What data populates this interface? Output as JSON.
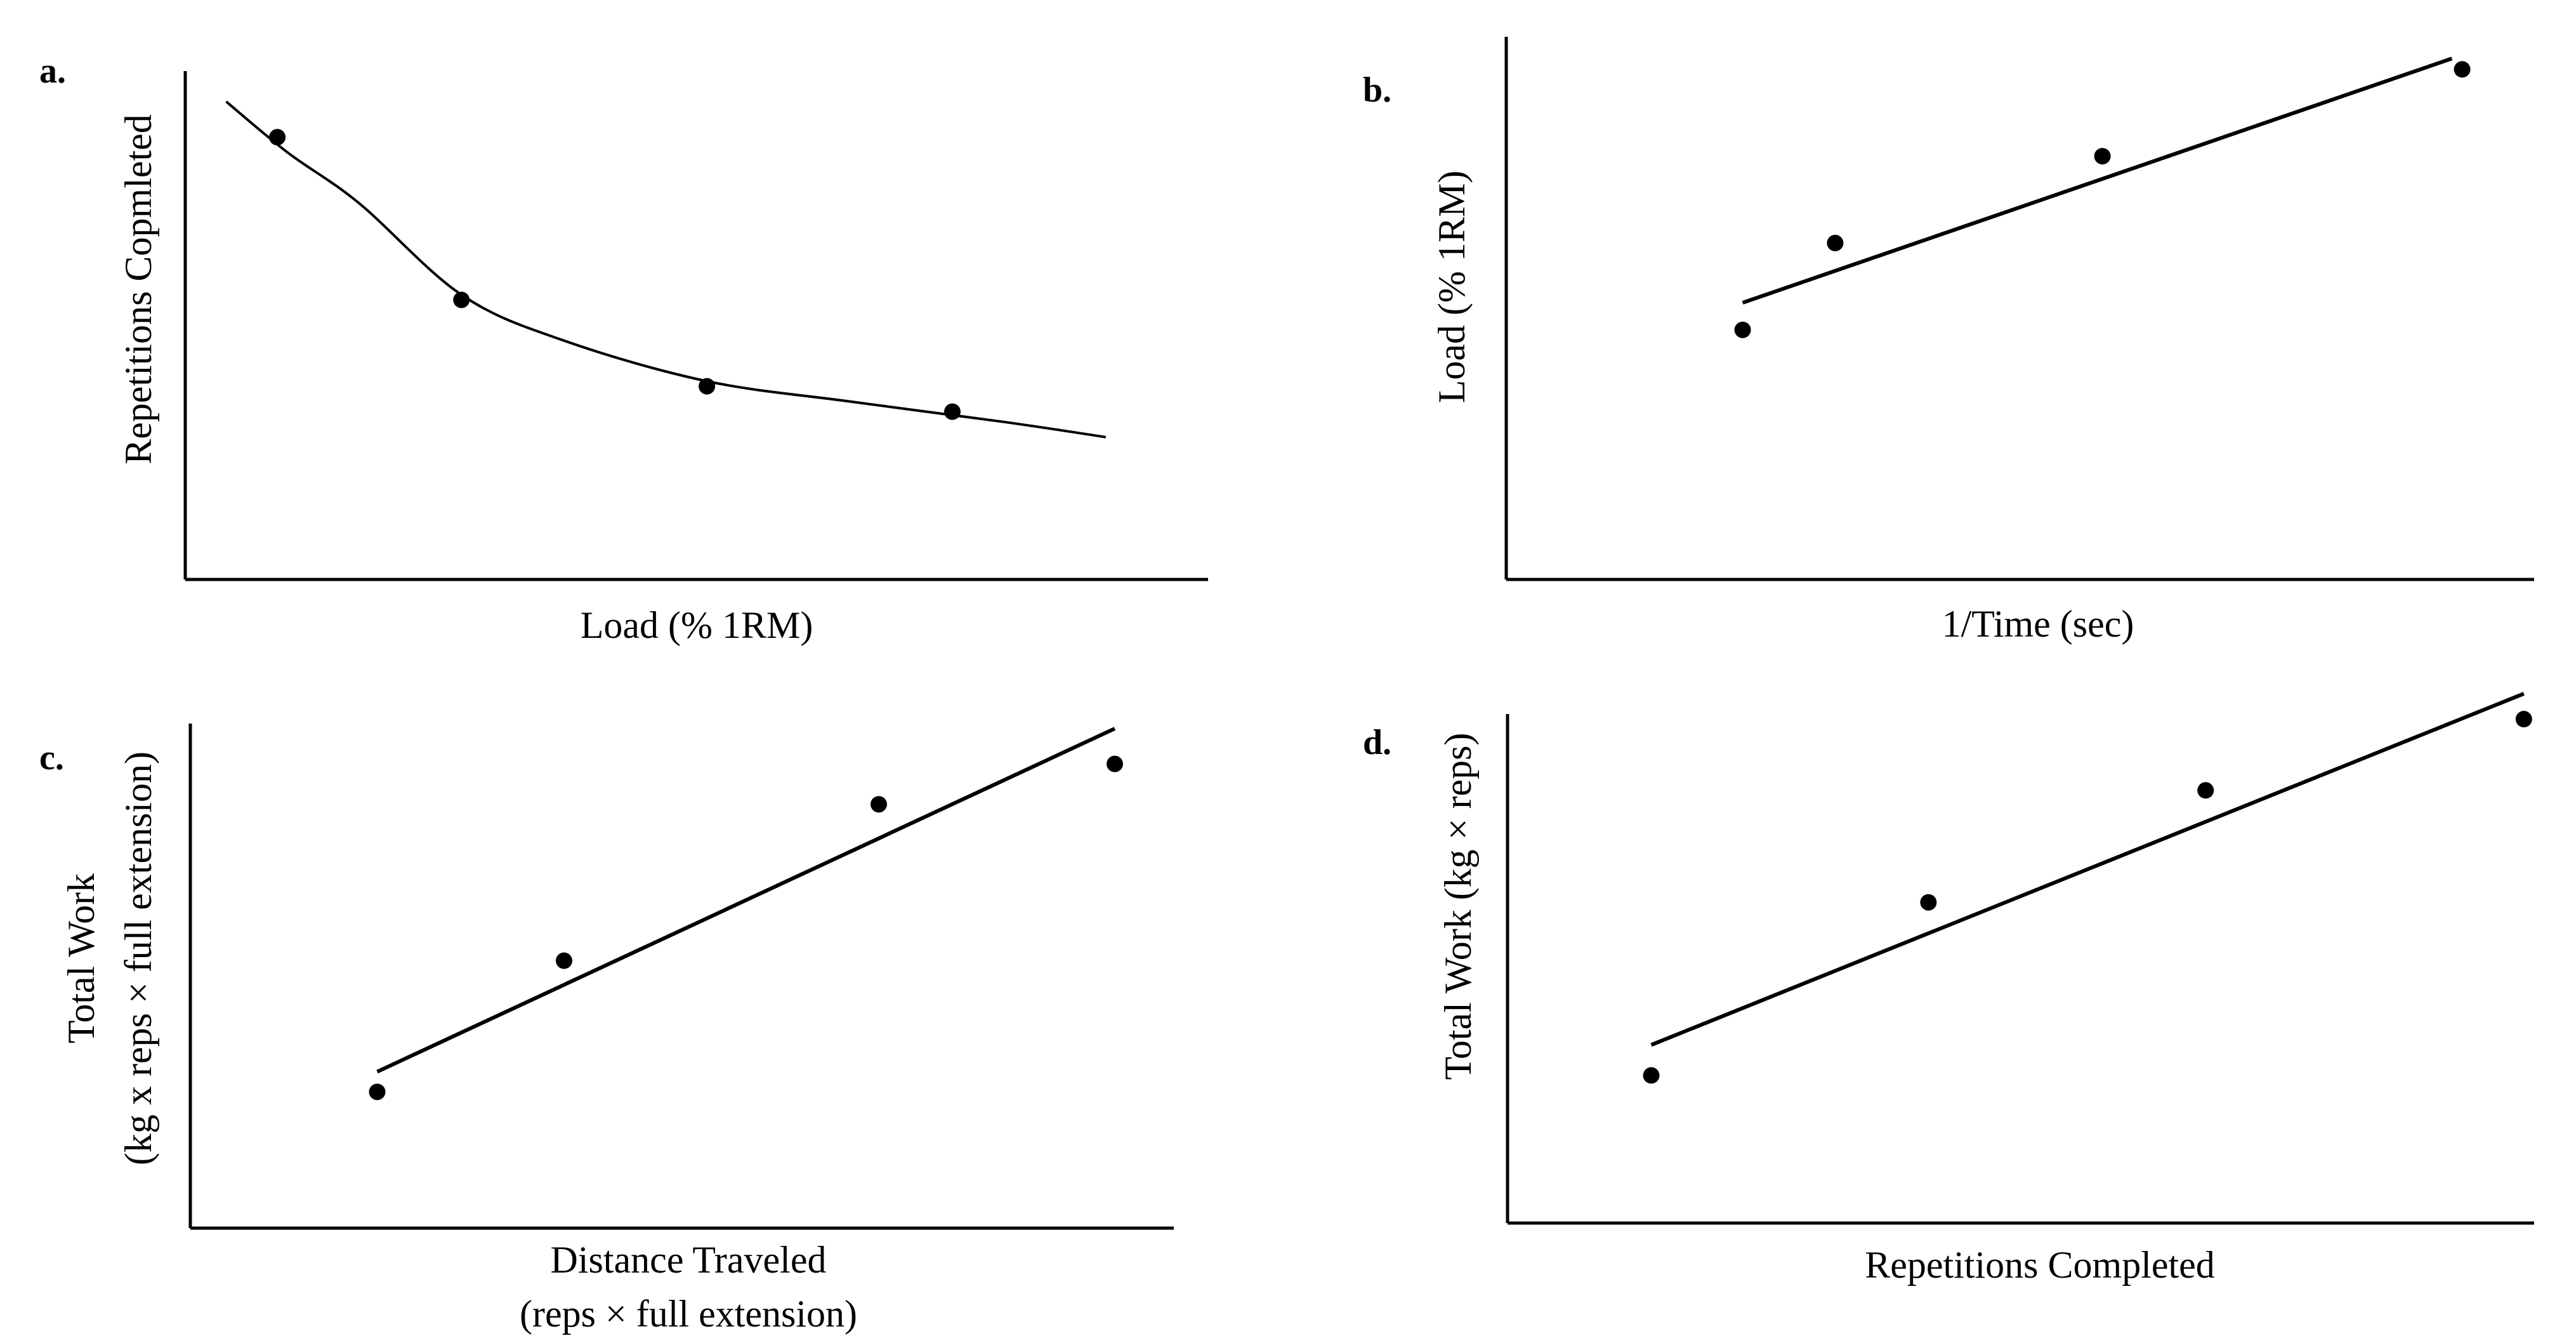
{
  "chart_data": [
    {
      "id": "a",
      "panel_label": "a.",
      "type": "line",
      "series_kind": "curve",
      "xlabel": "Load (% 1RM)",
      "xlabel2": "",
      "ylabel": "Repetitions Copmleted",
      "ylabel2": "",
      "xlim": [
        0,
        100
      ],
      "ylim": [
        0,
        100
      ],
      "points": [
        {
          "x": 9,
          "y": 87
        },
        {
          "x": 27,
          "y": 55
        },
        {
          "x": 51,
          "y": 38
        },
        {
          "x": 75,
          "y": 33
        }
      ],
      "fit": [
        [
          4,
          94
        ],
        [
          10,
          84
        ],
        [
          17,
          74
        ],
        [
          27,
          56
        ],
        [
          37,
          47
        ],
        [
          51,
          39
        ],
        [
          65,
          35
        ],
        [
          80,
          31
        ],
        [
          90,
          28
        ]
      ]
    },
    {
      "id": "b",
      "panel_label": "b.",
      "type": "line",
      "series_kind": "linear",
      "xlabel": "1/Time (sec)",
      "xlabel2": "",
      "ylabel": "Load (% 1RM)",
      "ylabel2": "",
      "xlim": [
        0,
        100
      ],
      "ylim": [
        0,
        100
      ],
      "points": [
        {
          "x": 23,
          "y": 46
        },
        {
          "x": 32,
          "y": 62
        },
        {
          "x": 58,
          "y": 78
        },
        {
          "x": 93,
          "y": 94
        }
      ],
      "fit": [
        [
          23,
          51
        ],
        [
          92,
          96
        ]
      ]
    },
    {
      "id": "c",
      "panel_label": "c.",
      "type": "line",
      "series_kind": "linear",
      "xlabel": "Distance Traveled",
      "xlabel2": "(reps × full extension)",
      "ylabel": "Total Work",
      "ylabel2": "(kg x reps × full extension)",
      "xlim": [
        0,
        100
      ],
      "ylim": [
        0,
        100
      ],
      "points": [
        {
          "x": 19,
          "y": 27
        },
        {
          "x": 38,
          "y": 53
        },
        {
          "x": 70,
          "y": 84
        },
        {
          "x": 94,
          "y": 92
        }
      ],
      "fit": [
        [
          19,
          31
        ],
        [
          94,
          99
        ]
      ]
    },
    {
      "id": "d",
      "panel_label": "d.",
      "type": "line",
      "series_kind": "linear",
      "xlabel": "Repetitions Completed",
      "xlabel2": "",
      "ylabel": "Total Work (kg × reps)",
      "ylabel2": "",
      "xlim": [
        0,
        100
      ],
      "ylim": [
        0,
        100
      ],
      "points": [
        {
          "x": 14,
          "y": 29
        },
        {
          "x": 41,
          "y": 63
        },
        {
          "x": 68,
          "y": 85
        },
        {
          "x": 99,
          "y": 99
        }
      ],
      "fit": [
        [
          14,
          35
        ],
        [
          99,
          104
        ]
      ]
    }
  ]
}
